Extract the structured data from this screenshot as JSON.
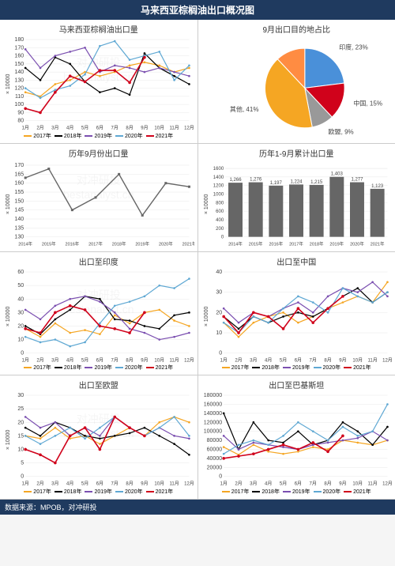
{
  "header_title": "马来西亚棕榈油出口概况图",
  "footer_text": "数据来源：MPOB，对冲研投",
  "watermark_text1": "对冲研投",
  "watermark_text2": "bestanalyst.cn",
  "months": [
    "1月",
    "2月",
    "3月",
    "4月",
    "5月",
    "6月",
    "7月",
    "8月",
    "9月",
    "10月",
    "11月",
    "12月"
  ],
  "years_long": [
    "2014年",
    "2015年",
    "2016年",
    "2017年",
    "2018年",
    "2019年",
    "2020年",
    "2021年"
  ],
  "series_colors": {
    "2017": "#f5a623",
    "2018": "#000000",
    "2019": "#7b4fb0",
    "2020": "#5fa8d3",
    "2021": "#d0021b"
  },
  "series_labels": {
    "2017": "2017年",
    "2018": "2018年",
    "2019": "2019年",
    "2020": "2020年",
    "2021": "2021年"
  },
  "chart1": {
    "title": "马来西亚棕榈油出口量",
    "ylabel": "× 10000",
    "ylim": [
      80,
      180
    ],
    "ytick_step": 10,
    "series": {
      "2017": [
        115,
        110,
        125,
        130,
        140,
        135,
        140,
        148,
        152,
        148,
        140,
        145
      ],
      "2018": [
        145,
        130,
        158,
        150,
        128,
        115,
        120,
        112,
        163,
        145,
        135,
        125
      ],
      "2019": [
        168,
        145,
        160,
        165,
        170,
        140,
        148,
        145,
        140,
        145,
        140,
        135
      ],
      "2020": [
        120,
        108,
        118,
        123,
        137,
        172,
        178,
        155,
        160,
        165,
        130,
        148
      ],
      "2021": [
        95,
        90,
        115,
        135,
        128,
        142,
        142,
        127,
        158,
        null,
        null,
        null
      ]
    }
  },
  "chart2": {
    "title": "9月出口目的地占比",
    "slices": [
      {
        "label": "印度",
        "value": 23,
        "color": "#4a90d9"
      },
      {
        "label": "中国",
        "value": 15,
        "color": "#d0021b"
      },
      {
        "label": "欧盟",
        "value": 9,
        "color": "#999999"
      },
      {
        "label": "其他",
        "value": 41,
        "color": "#f5a623"
      },
      {
        "label": "",
        "value": 12,
        "color": "#ff8c42"
      }
    ]
  },
  "chart3": {
    "title": "历年9月份出口量",
    "ylabel": "× 10000",
    "ylim": [
      130,
      170
    ],
    "ytick_step": 5,
    "line_color": "#666666",
    "data": [
      163,
      168,
      145,
      152,
      165,
      142,
      160,
      158
    ]
  },
  "chart4": {
    "title": "历年1-9月累计出口量",
    "ylabel": "× 10000",
    "ylim": [
      0,
      1600
    ],
    "ytick_step": 200,
    "bar_color": "#666666",
    "data": [
      1266,
      1276,
      1197,
      1224,
      1215,
      1403,
      1277,
      1123
    ]
  },
  "chart5": {
    "title": "出口至印度",
    "ylabel": "× 10000",
    "ylim": [
      0,
      60
    ],
    "ytick_step": 10,
    "series": {
      "2017": [
        18,
        12,
        22,
        15,
        17,
        14,
        28,
        22,
        30,
        32,
        24,
        20
      ],
      "2018": [
        20,
        14,
        25,
        32,
        42,
        40,
        25,
        24,
        20,
        18,
        28,
        30
      ],
      "2019": [
        32,
        25,
        35,
        40,
        42,
        38,
        30,
        18,
        15,
        10,
        12,
        15
      ],
      "2020": [
        12,
        8,
        10,
        5,
        8,
        22,
        35,
        38,
        42,
        50,
        48,
        55
      ],
      "2021": [
        18,
        15,
        30,
        35,
        32,
        20,
        18,
        15,
        30,
        null,
        null,
        null
      ]
    }
  },
  "chart6": {
    "title": "出口至中国",
    "ylabel": "× 10000",
    "ylim": [
      0,
      40
    ],
    "ytick_step": 10,
    "series": {
      "2017": [
        15,
        8,
        15,
        18,
        20,
        15,
        18,
        22,
        25,
        28,
        25,
        35
      ],
      "2018": [
        18,
        12,
        18,
        15,
        18,
        20,
        18,
        22,
        28,
        32,
        25,
        30
      ],
      "2019": [
        22,
        15,
        20,
        18,
        22,
        25,
        20,
        28,
        32,
        30,
        35,
        28
      ],
      "2020": [
        15,
        10,
        18,
        15,
        22,
        28,
        25,
        20,
        32,
        28,
        25,
        30
      ],
      "2021": [
        18,
        10,
        20,
        18,
        12,
        22,
        15,
        22,
        28,
        null,
        null,
        null
      ]
    }
  },
  "chart7": {
    "title": "出口至欧盟",
    "ylabel": "× 10000",
    "ylim": [
      0,
      30
    ],
    "ytick_step": 5,
    "series": {
      "2017": [
        15,
        14,
        18,
        14,
        15,
        12,
        15,
        18,
        15,
        20,
        22,
        20
      ],
      "2018": [
        18,
        15,
        20,
        18,
        15,
        14,
        15,
        16,
        18,
        15,
        12,
        8
      ],
      "2019": [
        22,
        18,
        20,
        15,
        18,
        15,
        22,
        18,
        15,
        18,
        15,
        14
      ],
      "2020": [
        15,
        12,
        15,
        18,
        14,
        18,
        22,
        18,
        15,
        18,
        22,
        15
      ],
      "2021": [
        10,
        8,
        5,
        15,
        18,
        10,
        22,
        18,
        15,
        null,
        null,
        null
      ]
    }
  },
  "chart8": {
    "title": "出口至巴基斯坦",
    "ylabel": "",
    "ylim": [
      0,
      180000
    ],
    "ytick_step": 20000,
    "series": {
      "2017": [
        65000,
        48000,
        70000,
        55000,
        50000,
        55000,
        65000,
        60000,
        80000,
        75000,
        70000,
        80000
      ],
      "2018": [
        140000,
        60000,
        120000,
        80000,
        75000,
        100000,
        70000,
        80000,
        120000,
        100000,
        70000,
        110000
      ],
      "2019": [
        90000,
        60000,
        75000,
        70000,
        65000,
        60000,
        70000,
        75000,
        80000,
        85000,
        100000,
        80000
      ],
      "2020": [
        50000,
        70000,
        80000,
        70000,
        90000,
        120000,
        100000,
        80000,
        110000,
        90000,
        100000,
        160000
      ],
      "2021": [
        40000,
        45000,
        50000,
        60000,
        70000,
        60000,
        75000,
        55000,
        90000,
        null,
        null,
        null
      ]
    }
  },
  "styling": {
    "bg_color": "#ffffff",
    "grid_color": "#e8e8e8",
    "axis_color": "#666666",
    "tick_fontsize": 7,
    "title_fontsize": 10
  }
}
